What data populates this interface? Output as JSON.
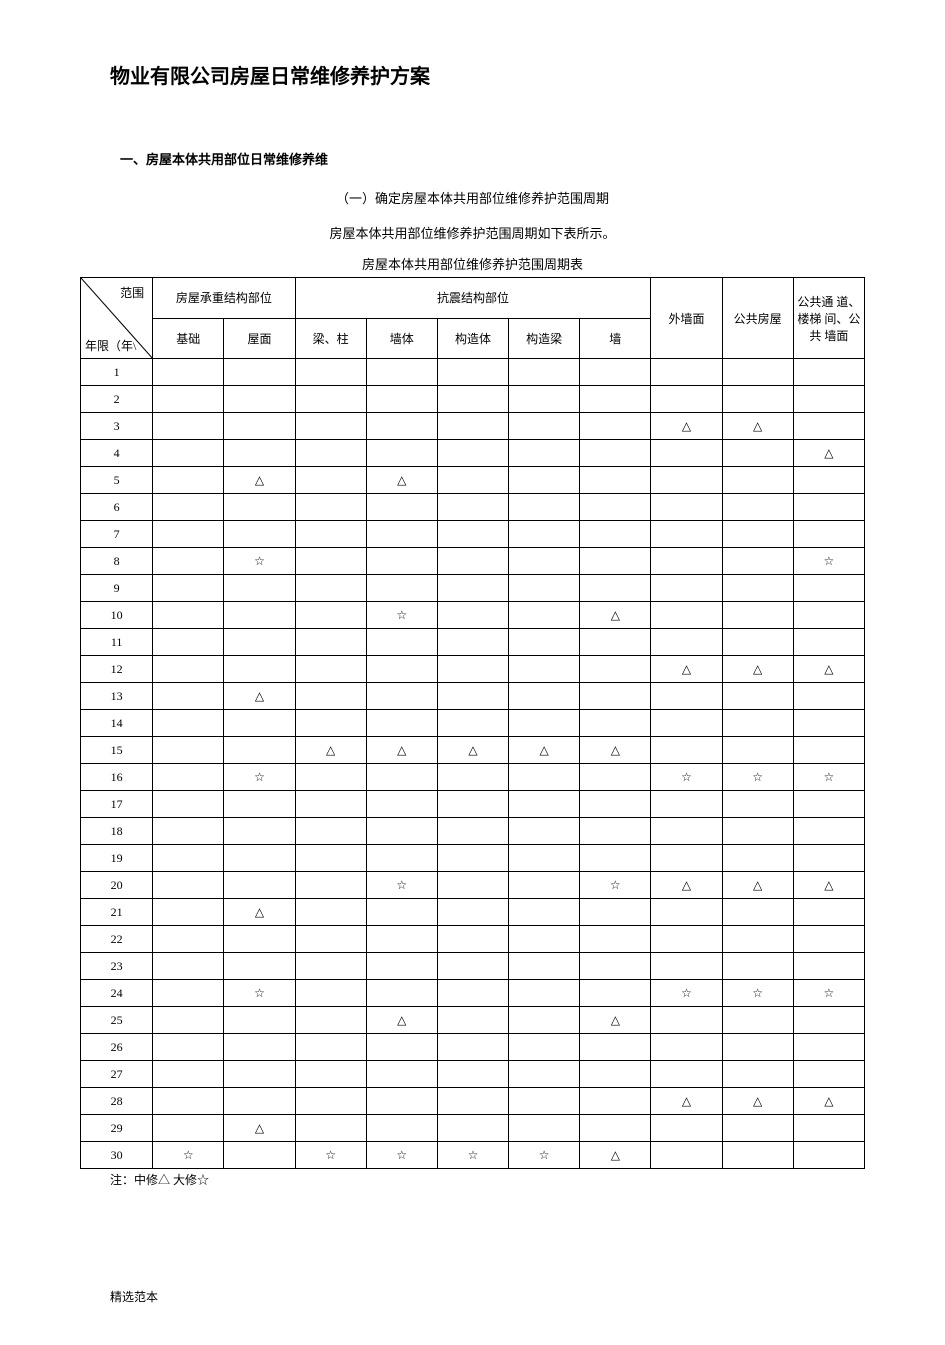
{
  "title": "物业有限公司房屋日常维修养护方案",
  "section_heading": "一、房屋本体共用部位日常维修养维",
  "sub_heading": "（一）确定房屋本体共用部位维修养护范围周期",
  "para": "房屋本体共用部位维修养护范围周期如下表所示。",
  "table_title": "房屋本体共用部位维修养护范围周期表",
  "corner_top": "范围",
  "corner_bottom": "年限（年\\",
  "group_headers": {
    "g1": "房屋承重结构部位",
    "g2": "抗震结构部位",
    "g3": "外墙面",
    "g4": "公共房屋",
    "g5": "公共通 道、楼梯 间、公共 墙面"
  },
  "col_headers": {
    "c1": "基础",
    "c2": "屋面",
    "c3": "梁、柱",
    "c4": "墙体",
    "c5": "构造体",
    "c6": "构造梁",
    "c7": "墙"
  },
  "years": [
    "1",
    "2",
    "3",
    "4",
    "5",
    "6",
    "7",
    "8",
    "9",
    "10",
    "11",
    "12",
    "13",
    "14",
    "15",
    "16",
    "17",
    "18",
    "19",
    "20",
    "21",
    "22",
    "23",
    "24",
    "25",
    "26",
    "27",
    "28",
    "29",
    "30"
  ],
  "symbols": {
    "mid": "△",
    "big": "☆"
  },
  "rows": [
    {
      "c1": "",
      "c2": "",
      "c3": "",
      "c4": "",
      "c5": "",
      "c6": "",
      "c7": "",
      "c8": "",
      "c9": "",
      "c10": ""
    },
    {
      "c1": "",
      "c2": "",
      "c3": "",
      "c4": "",
      "c5": "",
      "c6": "",
      "c7": "",
      "c8": "",
      "c9": "",
      "c10": ""
    },
    {
      "c1": "",
      "c2": "",
      "c3": "",
      "c4": "",
      "c5": "",
      "c6": "",
      "c7": "",
      "c8": "△",
      "c9": "△",
      "c10": ""
    },
    {
      "c1": "",
      "c2": "",
      "c3": "",
      "c4": "",
      "c5": "",
      "c6": "",
      "c7": "",
      "c8": "",
      "c9": "",
      "c10": "△"
    },
    {
      "c1": "",
      "c2": "△",
      "c3": "",
      "c4": "△",
      "c5": "",
      "c6": "",
      "c7": "",
      "c8": "",
      "c9": "",
      "c10": ""
    },
    {
      "c1": "",
      "c2": "",
      "c3": "",
      "c4": "",
      "c5": "",
      "c6": "",
      "c7": "",
      "c8": "",
      "c9": "",
      "c10": ""
    },
    {
      "c1": "",
      "c2": "",
      "c3": "",
      "c4": "",
      "c5": "",
      "c6": "",
      "c7": "",
      "c8": "",
      "c9": "",
      "c10": ""
    },
    {
      "c1": "",
      "c2": "☆",
      "c3": "",
      "c4": "",
      "c5": "",
      "c6": "",
      "c7": "",
      "c8": "",
      "c9": "",
      "c10": "☆"
    },
    {
      "c1": "",
      "c2": "",
      "c3": "",
      "c4": "",
      "c5": "",
      "c6": "",
      "c7": "",
      "c8": "",
      "c9": "",
      "c10": ""
    },
    {
      "c1": "",
      "c2": "",
      "c3": "",
      "c4": "☆",
      "c5": "",
      "c6": "",
      "c7": "△",
      "c8": "",
      "c9": "",
      "c10": ""
    },
    {
      "c1": "",
      "c2": "",
      "c3": "",
      "c4": "",
      "c5": "",
      "c6": "",
      "c7": "",
      "c8": "",
      "c9": "",
      "c10": ""
    },
    {
      "c1": "",
      "c2": "",
      "c3": "",
      "c4": "",
      "c5": "",
      "c6": "",
      "c7": "",
      "c8": "△",
      "c9": "△",
      "c10": "△"
    },
    {
      "c1": "",
      "c2": "△",
      "c3": "",
      "c4": "",
      "c5": "",
      "c6": "",
      "c7": "",
      "c8": "",
      "c9": "",
      "c10": ""
    },
    {
      "c1": "",
      "c2": "",
      "c3": "",
      "c4": "",
      "c5": "",
      "c6": "",
      "c7": "",
      "c8": "",
      "c9": "",
      "c10": ""
    },
    {
      "c1": "",
      "c2": "",
      "c3": "△",
      "c4": "△",
      "c5": "△",
      "c6": "△",
      "c7": "△",
      "c8": "",
      "c9": "",
      "c10": ""
    },
    {
      "c1": "",
      "c2": "☆",
      "c3": "",
      "c4": "",
      "c5": "",
      "c6": "",
      "c7": "",
      "c8": "☆",
      "c9": "☆",
      "c10": "☆"
    },
    {
      "c1": "",
      "c2": "",
      "c3": "",
      "c4": "",
      "c5": "",
      "c6": "",
      "c7": "",
      "c8": "",
      "c9": "",
      "c10": ""
    },
    {
      "c1": "",
      "c2": "",
      "c3": "",
      "c4": "",
      "c5": "",
      "c6": "",
      "c7": "",
      "c8": "",
      "c9": "",
      "c10": ""
    },
    {
      "c1": "",
      "c2": "",
      "c3": "",
      "c4": "",
      "c5": "",
      "c6": "",
      "c7": "",
      "c8": "",
      "c9": "",
      "c10": ""
    },
    {
      "c1": "",
      "c2": "",
      "c3": "",
      "c4": "☆",
      "c5": "",
      "c6": "",
      "c7": "☆",
      "c8": "△",
      "c9": "△",
      "c10": "△"
    },
    {
      "c1": "",
      "c2": "△",
      "c3": "",
      "c4": "",
      "c5": "",
      "c6": "",
      "c7": "",
      "c8": "",
      "c9": "",
      "c10": ""
    },
    {
      "c1": "",
      "c2": "",
      "c3": "",
      "c4": "",
      "c5": "",
      "c6": "",
      "c7": "",
      "c8": "",
      "c9": "",
      "c10": ""
    },
    {
      "c1": "",
      "c2": "",
      "c3": "",
      "c4": "",
      "c5": "",
      "c6": "",
      "c7": "",
      "c8": "",
      "c9": "",
      "c10": ""
    },
    {
      "c1": "",
      "c2": "☆",
      "c3": "",
      "c4": "",
      "c5": "",
      "c6": "",
      "c7": "",
      "c8": "☆",
      "c9": "☆",
      "c10": "☆"
    },
    {
      "c1": "",
      "c2": "",
      "c3": "",
      "c4": "△",
      "c5": "",
      "c6": "",
      "c7": "△",
      "c8": "",
      "c9": "",
      "c10": ""
    },
    {
      "c1": "",
      "c2": "",
      "c3": "",
      "c4": "",
      "c5": "",
      "c6": "",
      "c7": "",
      "c8": "",
      "c9": "",
      "c10": ""
    },
    {
      "c1": "",
      "c2": "",
      "c3": "",
      "c4": "",
      "c5": "",
      "c6": "",
      "c7": "",
      "c8": "",
      "c9": "",
      "c10": ""
    },
    {
      "c1": "",
      "c2": "",
      "c3": "",
      "c4": "",
      "c5": "",
      "c6": "",
      "c7": "",
      "c8": "△",
      "c9": "△",
      "c10": "△"
    },
    {
      "c1": "",
      "c2": "△",
      "c3": "",
      "c4": "",
      "c5": "",
      "c6": "",
      "c7": "",
      "c8": "",
      "c9": "",
      "c10": ""
    },
    {
      "c1": "☆",
      "c2": "",
      "c3": "☆",
      "c4": "☆",
      "c5": "☆",
      "c6": "☆",
      "c7": "△",
      "c8": "",
      "c9": "",
      "c10": ""
    }
  ],
  "note": "注：中修△ 大修☆",
  "footer": "精选范本"
}
